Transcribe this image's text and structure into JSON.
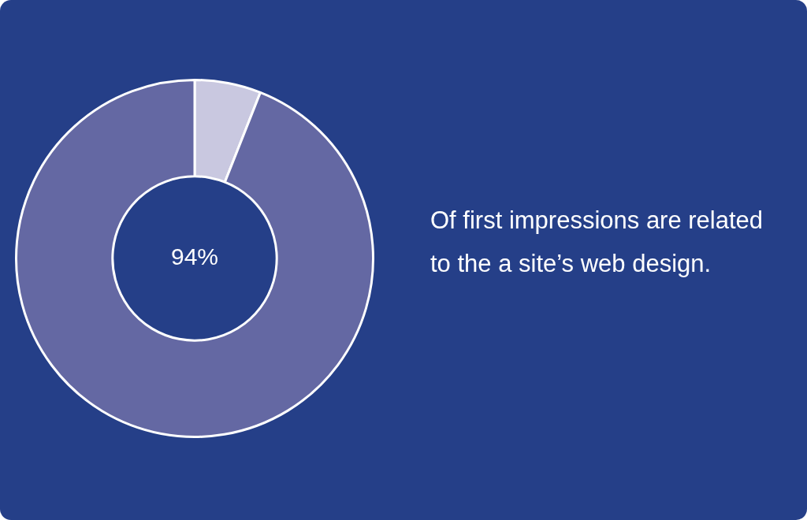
{
  "chart_data": {
    "type": "donut",
    "categories": [
      null,
      null
    ],
    "values": [
      6,
      94
    ],
    "colors": [
      "#c9c8e0",
      "#6468a3"
    ],
    "value_labels": [
      null,
      "94%"
    ],
    "legend": false,
    "annotations": [
      "Of first impressions are related to the a site’s web design."
    ]
  }
}
